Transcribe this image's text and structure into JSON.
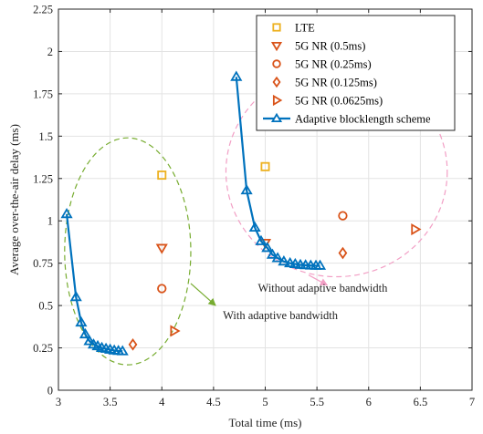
{
  "chart_data": {
    "type": "scatter",
    "title": "",
    "xlabel": "Total time (ms)",
    "ylabel": "Average over-the-air delay (ms)",
    "xlim": [
      3,
      7
    ],
    "ylim": [
      0,
      2.25
    ],
    "xticks": [
      3,
      3.5,
      4,
      4.5,
      5,
      5.5,
      6,
      6.5,
      7
    ],
    "yticks": [
      0,
      0.25,
      0.5,
      0.75,
      1,
      1.25,
      1.5,
      1.75,
      2,
      2.25
    ],
    "grid": true,
    "legend_position": "top-right",
    "series": [
      {
        "name": "LTE",
        "marker": "square",
        "color": "#EDB120",
        "line": false,
        "points": [
          [
            4,
            1.27
          ],
          [
            5,
            1.32
          ]
        ]
      },
      {
        "name": "5G NR (0.5ms)",
        "marker": "triangle-down",
        "color": "#D95319",
        "line": false,
        "points": [
          [
            4,
            0.84
          ],
          [
            5,
            0.87
          ]
        ]
      },
      {
        "name": "5G NR (0.25ms)",
        "marker": "circle",
        "color": "#D95319",
        "line": false,
        "points": [
          [
            4,
            0.6
          ],
          [
            5.75,
            1.03
          ]
        ]
      },
      {
        "name": "5G NR (0.125ms)",
        "marker": "diamond",
        "color": "#D95319",
        "line": false,
        "points": [
          [
            3.72,
            0.27
          ],
          [
            5.75,
            0.81
          ]
        ]
      },
      {
        "name": "5G NR (0.0625ms)",
        "marker": "triangle-right",
        "color": "#D95319",
        "line": false,
        "points": [
          [
            4.12,
            0.35
          ],
          [
            6.45,
            0.95
          ]
        ]
      },
      {
        "name": "Adaptive blocklength scheme",
        "marker": "triangle-up",
        "color": "#0072BD",
        "line": true,
        "groups": [
          [
            [
              3.08,
              1.04
            ],
            [
              3.17,
              0.55
            ],
            [
              3.22,
              0.4
            ],
            [
              3.26,
              0.33
            ],
            [
              3.3,
              0.29
            ],
            [
              3.34,
              0.27
            ],
            [
              3.38,
              0.26
            ],
            [
              3.42,
              0.25
            ],
            [
              3.46,
              0.245
            ],
            [
              3.5,
              0.24
            ],
            [
              3.54,
              0.235
            ],
            [
              3.58,
              0.232
            ],
            [
              3.62,
              0.23
            ]
          ],
          [
            [
              4.72,
              1.85
            ],
            [
              4.82,
              1.18
            ],
            [
              4.9,
              0.96
            ],
            [
              4.96,
              0.88
            ],
            [
              5.02,
              0.84
            ],
            [
              5.07,
              0.8
            ],
            [
              5.12,
              0.78
            ],
            [
              5.18,
              0.76
            ],
            [
              5.24,
              0.75
            ],
            [
              5.29,
              0.745
            ],
            [
              5.34,
              0.74
            ],
            [
              5.39,
              0.738
            ],
            [
              5.44,
              0.736
            ],
            [
              5.49,
              0.735
            ],
            [
              5.53,
              0.735
            ]
          ]
        ]
      }
    ],
    "annotations": [
      {
        "text": "With adaptive bandwidth",
        "color": "#77AC30",
        "ellipse": {
          "cx": 3.67,
          "cy": 0.82,
          "rx": 0.61,
          "ry": 0.67,
          "tilt": 0
        },
        "arrow_from": [
          4.28,
          0.63
        ],
        "arrow_to": [
          4.52,
          0.5
        ]
      },
      {
        "text": "Without adaptive bandwidth",
        "color": "#F29FC5",
        "ellipse": {
          "cx": 5.69,
          "cy": 1.29,
          "rx": 1.07,
          "ry": 0.62,
          "tilt": 0
        },
        "arrow_from": [
          5.42,
          0.68
        ],
        "arrow_to": [
          5.6,
          0.62
        ]
      }
    ]
  },
  "annotation_text": {
    "with": "With adaptive bandwidth",
    "without": "Without adaptive bandwidth"
  }
}
